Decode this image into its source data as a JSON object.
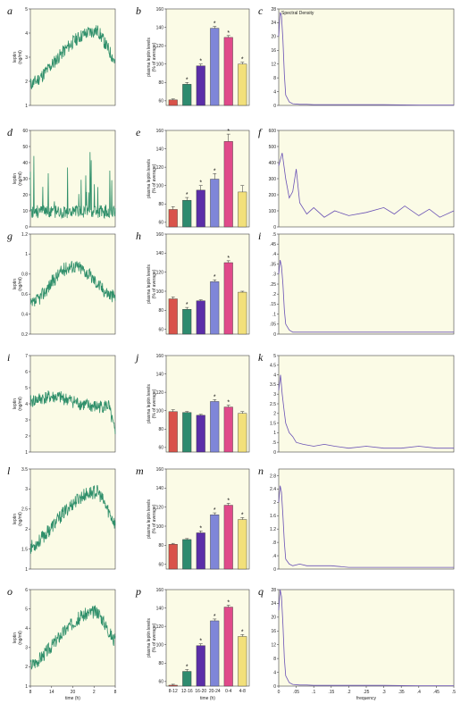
{
  "colors": {
    "trace": "#2f8f6a",
    "spectrum": "#6a52b5",
    "panel_bg": "#fbfbe6",
    "bars": [
      "#d9534a",
      "#2e8b6e",
      "#5b2ea8",
      "#7f86d8",
      "#e04a8a",
      "#f2e07a"
    ]
  },
  "chart_data": [
    {
      "panel": "a",
      "type": "line",
      "ylabel": "leptin\n(ng/ml)",
      "yticks": [
        "1",
        "2",
        "3",
        "4",
        "5"
      ],
      "ylim": [
        1,
        5
      ],
      "xticks": [],
      "xlabel": "",
      "seed": 11,
      "shape": "rise"
    },
    {
      "panel": "b",
      "type": "bar",
      "ylabel": "plasma leptin levels\n(% of average)",
      "yticks": [
        "60",
        "80",
        "100",
        "120",
        "140",
        "160"
      ],
      "ylim": [
        55,
        160
      ],
      "categories": [
        "8-12",
        "12-16",
        "16-20",
        "20-24",
        "0-4",
        "4-8"
      ],
      "values": [
        61,
        78,
        98,
        139,
        129,
        100
      ],
      "errors": [
        1,
        2,
        2,
        2,
        2,
        2
      ],
      "stars": [
        false,
        true,
        true,
        true,
        true,
        true
      ],
      "xlabel": ""
    },
    {
      "panel": "c",
      "type": "line",
      "title": "Spectral Density",
      "yticks": [
        "0",
        "4",
        "8",
        "12",
        "16",
        "20",
        "24",
        "28"
      ],
      "ylim": [
        0,
        28
      ],
      "x": [
        0,
        0.004,
        0.008,
        0.012,
        0.016,
        0.02,
        0.03,
        0.04,
        0.06,
        0.08,
        0.1,
        0.15,
        0.2,
        0.3,
        0.4,
        0.5
      ],
      "y": [
        20,
        27,
        26,
        19,
        9,
        3,
        1,
        0.5,
        0.3,
        0.3,
        0.2,
        0.2,
        0.2,
        0.2,
        0.1,
        0.1
      ],
      "xticks": []
    },
    {
      "panel": "d",
      "type": "line",
      "ylabel": "leptin\n(ng/ml)",
      "yticks": [
        "0",
        "10",
        "20",
        "30",
        "40",
        "50",
        "60"
      ],
      "ylim": [
        0,
        60
      ],
      "xticks": [],
      "xlabel": "",
      "seed": 23,
      "shape": "spiky"
    },
    {
      "panel": "e",
      "type": "bar",
      "ylabel": "plasma leptin levels\n(% of average)",
      "yticks": [
        "60",
        "80",
        "100",
        "120",
        "140",
        "160"
      ],
      "ylim": [
        55,
        160
      ],
      "categories": [
        "8-12",
        "12-16",
        "16-20",
        "20-24",
        "0-4",
        "4-8"
      ],
      "values": [
        74,
        84,
        95,
        107,
        148,
        93
      ],
      "errors": [
        3,
        3,
        5,
        6,
        8,
        7
      ],
      "stars": [
        false,
        true,
        true,
        true,
        true,
        false
      ],
      "xlabel": ""
    },
    {
      "panel": "f",
      "type": "line",
      "yticks": [
        "0",
        "100",
        "200",
        "300",
        "400",
        "500",
        "600"
      ],
      "ylim": [
        0,
        600
      ],
      "x": [
        0,
        0.01,
        0.02,
        0.03,
        0.04,
        0.05,
        0.06,
        0.08,
        0.1,
        0.13,
        0.16,
        0.2,
        0.25,
        0.3,
        0.33,
        0.36,
        0.4,
        0.43,
        0.46,
        0.5
      ],
      "y": [
        380,
        460,
        300,
        180,
        220,
        360,
        150,
        80,
        120,
        60,
        100,
        70,
        90,
        120,
        80,
        130,
        70,
        110,
        60,
        100
      ],
      "xticks": []
    },
    {
      "panel": "g",
      "type": "line",
      "ylabel": "leptin\n(ng/ml)",
      "yticks": [
        "0.2",
        "0.4",
        "0.6",
        "0.8",
        "1",
        "1.2"
      ],
      "ylim": [
        0.2,
        1.2
      ],
      "xticks": [],
      "xlabel": "",
      "seed": 37,
      "shape": "wave"
    },
    {
      "panel": "h",
      "type": "bar",
      "ylabel": "plasma leptin levels\n(% of average)",
      "yticks": [
        "60",
        "80",
        "100",
        "120",
        "140",
        "160"
      ],
      "ylim": [
        55,
        160
      ],
      "categories": [
        "8-12",
        "12-16",
        "16-20",
        "20-24",
        "0-4",
        "4-8"
      ],
      "values": [
        92,
        81,
        90,
        110,
        130,
        99
      ],
      "errors": [
        2,
        2,
        1,
        2,
        2,
        1
      ],
      "stars": [
        false,
        true,
        false,
        true,
        true,
        false
      ],
      "xlabel": ""
    },
    {
      "panel": "i",
      "type": "line",
      "yticks": [
        "0",
        ".05",
        ".1",
        ".15",
        ".2",
        ".25",
        ".3",
        ".35",
        ".4",
        ".45",
        ".5"
      ],
      "ylim": [
        0,
        0.5
      ],
      "x": [
        0,
        0.004,
        0.008,
        0.012,
        0.016,
        0.02,
        0.03,
        0.04,
        0.06,
        0.08,
        0.1,
        0.15,
        0.2,
        0.3,
        0.4,
        0.5
      ],
      "y": [
        0.3,
        0.37,
        0.34,
        0.25,
        0.12,
        0.05,
        0.02,
        0.01,
        0.01,
        0.01,
        0.01,
        0.01,
        0.01,
        0.01,
        0.01,
        0.01
      ],
      "xticks": []
    },
    {
      "panel": "i",
      "type": "line",
      "ylabel": "leptin\n(ng/ml)",
      "yticks": [
        "1",
        "2",
        "3",
        "4",
        "5",
        "6",
        "7"
      ],
      "ylim": [
        1,
        7
      ],
      "xticks": [],
      "xlabel": "",
      "seed": 41,
      "shape": "flat"
    },
    {
      "panel": "j",
      "type": "bar",
      "ylabel": "plasma leptin levels\n(% of average)",
      "yticks": [
        "60",
        "80",
        "100",
        "120",
        "140",
        "160"
      ],
      "ylim": [
        55,
        160
      ],
      "categories": [
        "8-12",
        "12-16",
        "16-20",
        "20-24",
        "0-4",
        "4-8"
      ],
      "values": [
        99,
        98,
        95,
        110,
        104,
        97
      ],
      "errors": [
        2,
        1,
        1,
        2,
        2,
        2
      ],
      "stars": [
        false,
        false,
        false,
        true,
        true,
        false
      ],
      "xlabel": ""
    },
    {
      "panel": "k",
      "type": "line",
      "yticks": [
        "0",
        ".5",
        "1",
        "1.5",
        "2",
        "2.5",
        "3",
        "3.5",
        "4",
        "4.5",
        "5"
      ],
      "ylim": [
        0,
        5
      ],
      "x": [
        0,
        0.005,
        0.01,
        0.015,
        0.02,
        0.03,
        0.04,
        0.05,
        0.07,
        0.1,
        0.13,
        0.16,
        0.2,
        0.25,
        0.3,
        0.35,
        0.4,
        0.45,
        0.5
      ],
      "y": [
        3.2,
        4.0,
        3.0,
        2.2,
        1.5,
        1.0,
        0.8,
        0.5,
        0.4,
        0.3,
        0.4,
        0.3,
        0.2,
        0.3,
        0.2,
        0.2,
        0.3,
        0.2,
        0.2
      ],
      "xticks": []
    },
    {
      "panel": "l",
      "type": "line",
      "ylabel": "leptin\n(ng/ml)",
      "yticks": [
        "1",
        "1.5",
        "2",
        "2.5",
        "3",
        "3.5"
      ],
      "ylim": [
        1,
        3.5
      ],
      "xticks": [],
      "xlabel": "",
      "seed": 53,
      "shape": "rise"
    },
    {
      "panel": "m",
      "type": "bar",
      "ylabel": "plasma leptin levels\n(% of average)",
      "yticks": [
        "60",
        "80",
        "100",
        "120",
        "140",
        "160"
      ],
      "ylim": [
        55,
        160
      ],
      "categories": [
        "8-12",
        "12-16",
        "16-20",
        "20-24",
        "0-4",
        "4-8"
      ],
      "values": [
        81,
        86,
        93,
        112,
        122,
        107
      ],
      "errors": [
        1,
        1,
        2,
        2,
        2,
        2
      ],
      "stars": [
        false,
        false,
        true,
        true,
        true,
        true
      ],
      "xlabel": ""
    },
    {
      "panel": "n",
      "type": "line",
      "yticks": [
        "0",
        ".4",
        ".8",
        "1.2",
        "1.6",
        "2",
        "2.4",
        "2.8"
      ],
      "ylim": [
        0,
        3
      ],
      "x": [
        0,
        0.004,
        0.008,
        0.012,
        0.016,
        0.02,
        0.03,
        0.04,
        0.06,
        0.08,
        0.1,
        0.15,
        0.2,
        0.3,
        0.4,
        0.5
      ],
      "y": [
        2.0,
        2.5,
        2.3,
        1.6,
        0.8,
        0.3,
        0.15,
        0.1,
        0.15,
        0.1,
        0.1,
        0.1,
        0.05,
        0.05,
        0.05,
        0.05
      ],
      "xticks": []
    },
    {
      "panel": "o",
      "type": "line",
      "ylabel": "leptin\n(ng/ml)",
      "yticks": [
        "1",
        "2",
        "3",
        "4",
        "5",
        "6"
      ],
      "ylim": [
        1,
        6
      ],
      "xticks": [
        "8",
        "14",
        "20",
        "2",
        "8"
      ],
      "xlabel": "time (h)",
      "seed": 67,
      "shape": "rise"
    },
    {
      "panel": "p",
      "type": "bar",
      "ylabel": "plasma leptin levels\n(% of average)",
      "yticks": [
        "60",
        "80",
        "100",
        "120",
        "140",
        "160"
      ],
      "ylim": [
        55,
        160
      ],
      "categories": [
        "8-12",
        "12-16",
        "16-20",
        "20-24",
        "0-4",
        "4-8"
      ],
      "values": [
        56,
        71,
        99,
        126,
        141,
        109
      ],
      "errors": [
        1,
        2,
        2,
        2,
        2,
        2
      ],
      "stars": [
        false,
        true,
        true,
        true,
        true,
        true
      ],
      "xlabel": "time (h)"
    },
    {
      "panel": "q",
      "type": "line",
      "yticks": [
        "0",
        "4",
        "8",
        "12",
        "16",
        "20",
        "24",
        "28"
      ],
      "ylim": [
        0,
        28
      ],
      "x": [
        0,
        0.004,
        0.008,
        0.012,
        0.016,
        0.02,
        0.03,
        0.04,
        0.06,
        0.08,
        0.1,
        0.15,
        0.2,
        0.3,
        0.4,
        0.5
      ],
      "y": [
        22,
        28,
        26,
        18,
        8,
        3,
        1,
        0.5,
        0.3,
        0.3,
        0.2,
        0.2,
        0.2,
        0.2,
        0.1,
        0.1
      ],
      "xticks": [
        "0",
        ".05",
        ".1",
        ".15",
        ".2",
        ".25",
        ".3",
        ".35",
        ".4",
        ".45",
        ".5"
      ],
      "xlabel": "frequency"
    }
  ]
}
